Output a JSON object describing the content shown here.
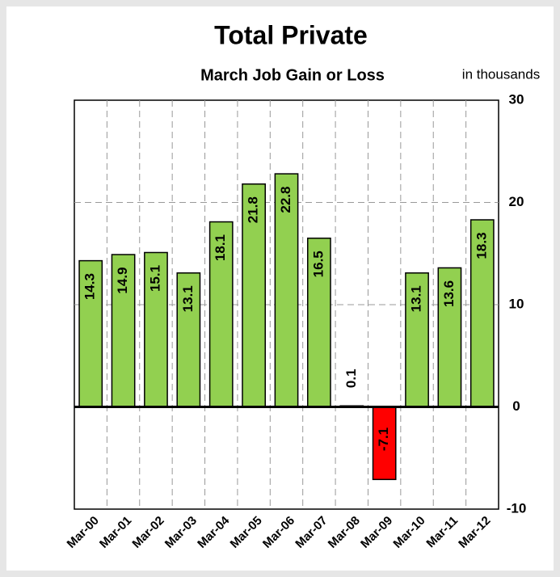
{
  "chart_data": {
    "type": "bar",
    "title": "Total Private",
    "subtitle": "March Job Gain or Loss",
    "unit_label": "in thousands",
    "categories": [
      "Mar-00",
      "Mar-01",
      "Mar-02",
      "Mar-03",
      "Mar-04",
      "Mar-05",
      "Mar-06",
      "Mar-07",
      "Mar-08",
      "Mar-09",
      "Mar-10",
      "Mar-11",
      "Mar-12"
    ],
    "values": [
      14.3,
      14.9,
      15.1,
      13.1,
      18.1,
      21.8,
      22.8,
      16.5,
      0.1,
      -7.1,
      13.1,
      13.6,
      18.3
    ],
    "color": "#92d050",
    "negative_color": "#ff0000",
    "ylim": [
      -10,
      30
    ],
    "yticks": [
      -10,
      0,
      10,
      20,
      30
    ],
    "grid": true,
    "y_axis_side": "right"
  }
}
